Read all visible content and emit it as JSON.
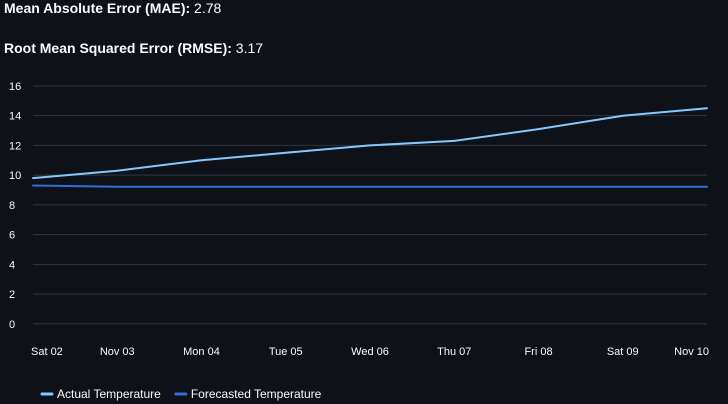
{
  "metrics": {
    "mae_label": "Mean Absolute Error (MAE):",
    "mae_value": "2.78",
    "rmse_label": "Root Mean Squared Error (RMSE):",
    "rmse_value": "3.17"
  },
  "chart_data": {
    "type": "line",
    "title": "",
    "xlabel": "",
    "ylabel": "",
    "categories": [
      "Sat 02",
      "Nov 03",
      "Mon 04",
      "Tue 05",
      "Wed 06",
      "Thu 07",
      "Fri 08",
      "Sat 09",
      "Nov 10"
    ],
    "yticks": [
      0,
      2,
      4,
      6,
      8,
      10,
      12,
      14,
      16
    ],
    "ylim": [
      -0.35,
      16.4
    ],
    "grid": true,
    "legend": "bottom-left",
    "series": [
      {
        "name": "Actual Temperature",
        "color": "#83c9ff",
        "values": [
          9.8,
          10.3,
          11.0,
          11.5,
          12.0,
          12.3,
          13.1,
          14.0,
          14.5
        ]
      },
      {
        "name": "Forecasted Temperature",
        "color": "#2f6fd6",
        "values": [
          9.3,
          9.22,
          9.22,
          9.22,
          9.22,
          9.22,
          9.22,
          9.22,
          9.22
        ]
      }
    ]
  }
}
